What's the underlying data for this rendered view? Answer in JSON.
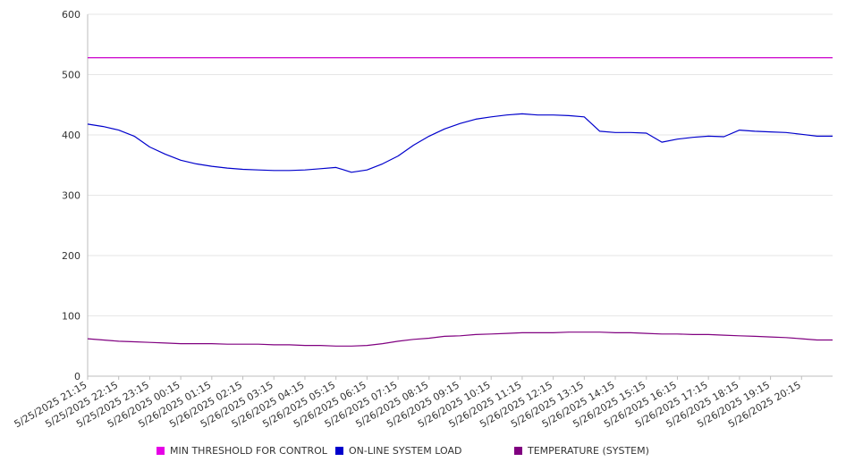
{
  "chart_data": {
    "type": "line",
    "title": "",
    "xlabel": "",
    "ylabel": "",
    "ylim": [
      0,
      600
    ],
    "yticks": [
      0,
      100,
      200,
      300,
      400,
      500,
      600
    ],
    "grid": true,
    "legend_position": "bottom",
    "categories": [
      "5/25/2025 21:15",
      "5/25/2025 22:15",
      "5/25/2025 23:15",
      "5/26/2025 00:15",
      "5/26/2025 01:15",
      "5/26/2025 02:15",
      "5/26/2025 03:15",
      "5/26/2025 04:15",
      "5/26/2025 05:15",
      "5/26/2025 06:15",
      "5/26/2025 07:15",
      "5/26/2025 08:15",
      "5/26/2025 09:15",
      "5/26/2025 10:15",
      "5/26/2025 11:15",
      "5/26/2025 12:15",
      "5/26/2025 13:15",
      "5/26/2025 14:15",
      "5/26/2025 15:15",
      "5/26/2025 16:15",
      "5/26/2025 17:15",
      "5/26/2025 18:15",
      "5/26/2025 19:15",
      "5/26/2025 20:15"
    ],
    "x": [
      "5/25/2025 21:15",
      "5/25/2025 21:45",
      "5/25/2025 22:15",
      "5/25/2025 22:45",
      "5/25/2025 23:15",
      "5/25/2025 23:45",
      "5/26/2025 00:15",
      "5/26/2025 00:45",
      "5/26/2025 01:15",
      "5/26/2025 01:45",
      "5/26/2025 02:15",
      "5/26/2025 02:45",
      "5/26/2025 03:15",
      "5/26/2025 03:45",
      "5/26/2025 04:15",
      "5/26/2025 04:45",
      "5/26/2025 05:15",
      "5/26/2025 05:45",
      "5/26/2025 06:15",
      "5/26/2025 06:45",
      "5/26/2025 07:15",
      "5/26/2025 07:45",
      "5/26/2025 08:15",
      "5/26/2025 08:45",
      "5/26/2025 09:15",
      "5/26/2025 09:45",
      "5/26/2025 10:15",
      "5/26/2025 10:45",
      "5/26/2025 11:15",
      "5/26/2025 11:45",
      "5/26/2025 12:15",
      "5/26/2025 12:45",
      "5/26/2025 13:15",
      "5/26/2025 13:45",
      "5/26/2025 14:15",
      "5/26/2025 14:45",
      "5/26/2025 15:15",
      "5/26/2025 15:45",
      "5/26/2025 16:15",
      "5/26/2025 16:45",
      "5/26/2025 17:15",
      "5/26/2025 17:45",
      "5/26/2025 18:15",
      "5/26/2025 18:45",
      "5/26/2025 19:15",
      "5/26/2025 19:45",
      "5/26/2025 20:15",
      "5/26/2025 20:45"
    ],
    "series": [
      {
        "name": "MIN THRESHOLD FOR CONTROL",
        "color": "#cc00cc",
        "values": [
          528,
          528,
          528,
          528,
          528,
          528,
          528,
          528,
          528,
          528,
          528,
          528,
          528,
          528,
          528,
          528,
          528,
          528,
          528,
          528,
          528,
          528,
          528,
          528,
          528,
          528,
          528,
          528,
          528,
          528,
          528,
          528,
          528,
          528,
          528,
          528,
          528,
          528,
          528,
          528,
          528,
          528,
          528,
          528,
          528,
          528,
          528,
          528
        ]
      },
      {
        "name": "ON-LINE SYSTEM LOAD",
        "color": "#0000cc",
        "values": [
          418,
          414,
          408,
          398,
          380,
          368,
          358,
          352,
          348,
          345,
          343,
          342,
          341,
          341,
          342,
          344,
          346,
          338,
          342,
          352,
          365,
          383,
          398,
          410,
          419,
          426,
          430,
          433,
          435,
          433,
          433,
          432,
          430,
          406,
          404,
          404,
          403,
          388,
          393,
          396,
          398,
          397,
          408,
          406,
          405,
          404,
          401,
          398
        ]
      },
      {
        "name": "TEMPERATURE (SYSTEM)",
        "color": "#800080",
        "values": [
          62,
          60,
          58,
          57,
          56,
          55,
          54,
          54,
          54,
          53,
          53,
          53,
          52,
          52,
          51,
          51,
          50,
          50,
          51,
          54,
          58,
          61,
          63,
          66,
          67,
          69,
          70,
          71,
          72,
          72,
          72,
          73,
          73,
          73,
          72,
          72,
          71,
          70,
          70,
          69,
          69,
          68,
          67,
          66,
          65,
          64,
          62,
          60
        ]
      }
    ]
  }
}
